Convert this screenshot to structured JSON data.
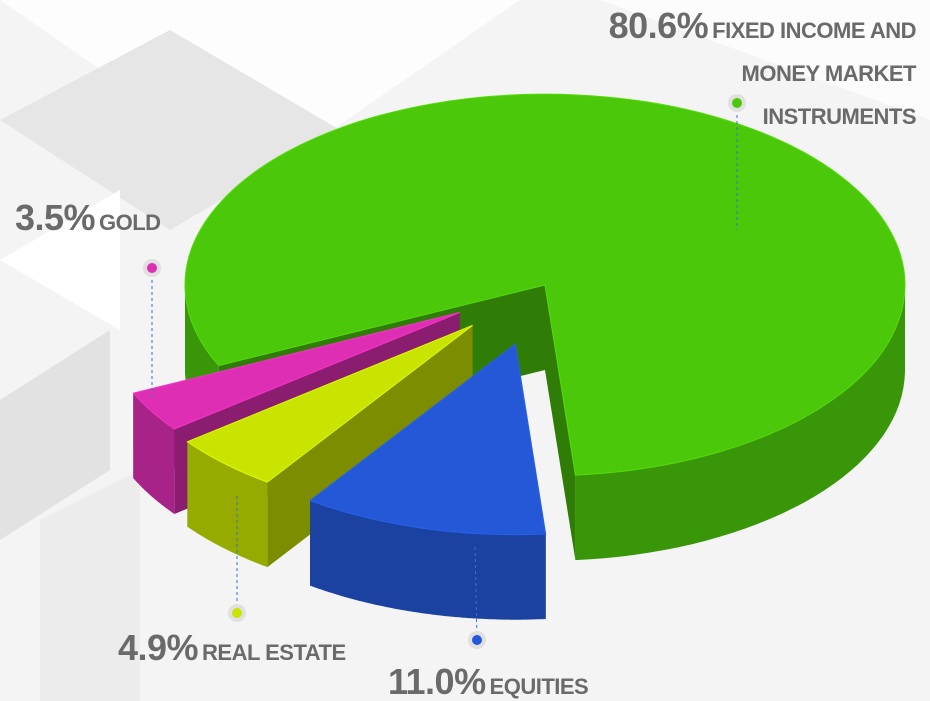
{
  "chart_data": {
    "type": "pie",
    "categories": [
      "FIXED INCOME AND MONEY MARKET INSTRUMENTS",
      "EQUITIES",
      "REAL ESTATE",
      "GOLD"
    ],
    "values": [
      80.6,
      11.0,
      4.9,
      3.5
    ],
    "value_labels": [
      "80.6%",
      "11.0%",
      "4.9%",
      "3.5%"
    ],
    "colors": [
      "#4cc80a",
      "#2458d6",
      "#c8e400",
      "#de2fb4"
    ]
  }
}
